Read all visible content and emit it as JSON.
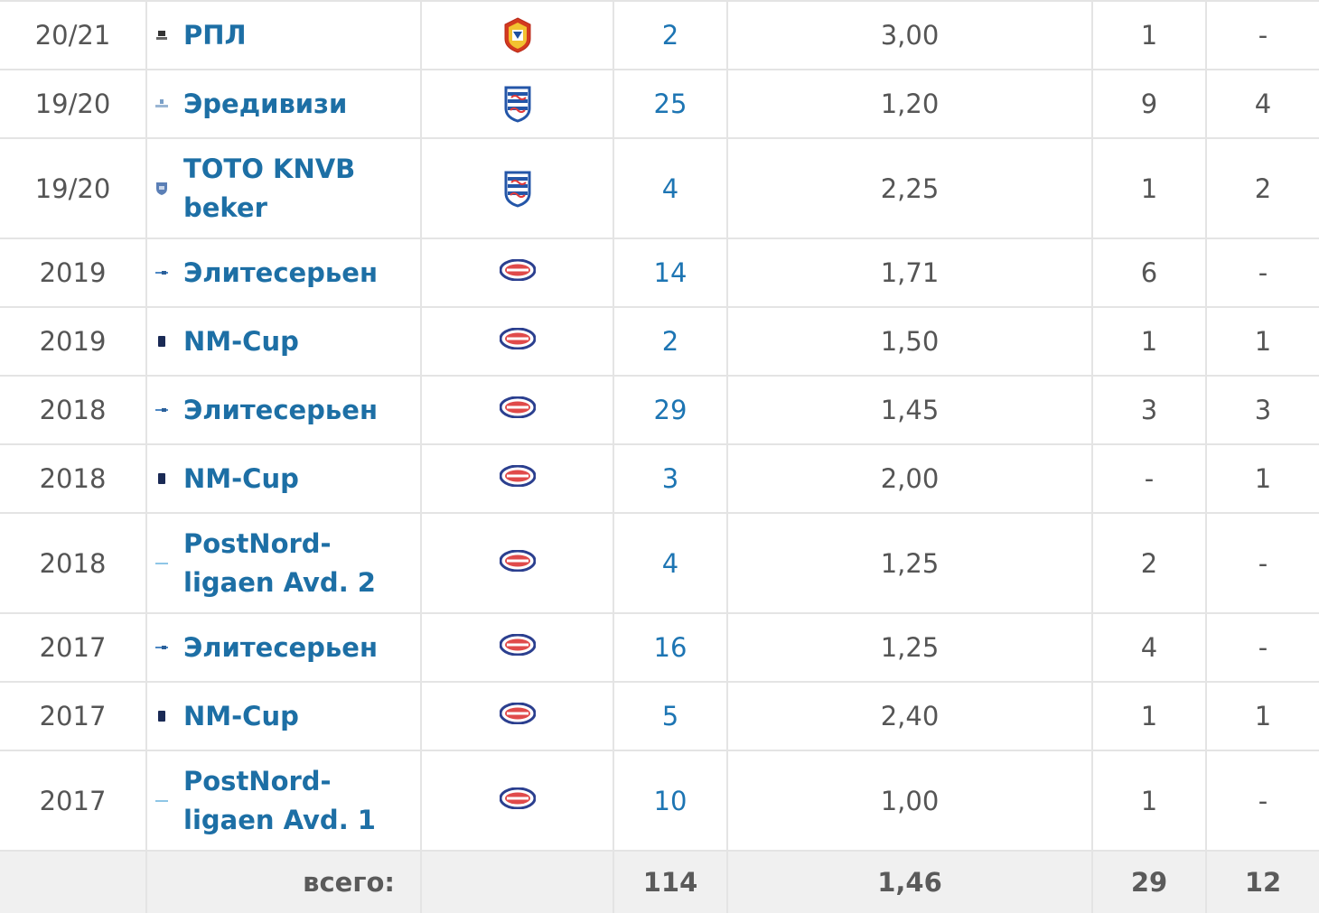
{
  "rows": [
    {
      "season": "20/21",
      "competition": "РПЛ",
      "apps": "2",
      "avg": "3,00",
      "col6": "1",
      "col7": "-"
    },
    {
      "season": "19/20",
      "competition": "Эредивизи",
      "apps": "25",
      "avg": "1,20",
      "col6": "9",
      "col7": "4"
    },
    {
      "season": "19/20",
      "competition": "TOTO KNVB beker",
      "apps": "4",
      "avg": "2,25",
      "col6": "1",
      "col7": "2"
    },
    {
      "season": "2019",
      "competition": "Элитесерьен",
      "apps": "14",
      "avg": "1,71",
      "col6": "6",
      "col7": "-"
    },
    {
      "season": "2019",
      "competition": "NM-Cup",
      "apps": "2",
      "avg": "1,50",
      "col6": "1",
      "col7": "1"
    },
    {
      "season": "2018",
      "competition": "Элитесерьен",
      "apps": "29",
      "avg": "1,45",
      "col6": "3",
      "col7": "3"
    },
    {
      "season": "2018",
      "competition": "NM-Cup",
      "apps": "3",
      "avg": "2,00",
      "col6": "-",
      "col7": "1"
    },
    {
      "season": "2018",
      "competition": "PostNord-ligaen Avd. 2",
      "apps": "4",
      "avg": "1,25",
      "col6": "2",
      "col7": "-"
    },
    {
      "season": "2017",
      "competition": "Элитесерьен",
      "apps": "16",
      "avg": "1,25",
      "col6": "4",
      "col7": "-"
    },
    {
      "season": "2017",
      "competition": "NM-Cup",
      "apps": "5",
      "avg": "2,40",
      "col6": "1",
      "col7": "1"
    },
    {
      "season": "2017",
      "competition": "PostNord-ligaen Avd. 1",
      "apps": "10",
      "avg": "1,00",
      "col6": "1",
      "col7": "-"
    }
  ],
  "total": {
    "label": "всего:",
    "apps": "114",
    "avg": "1,46",
    "col6": "29",
    "col7": "12"
  },
  "colors": {
    "link": "#1d75b3",
    "competition": "#1d6fa5",
    "border": "#e4e4e4",
    "total_bg": "#f0f0f0"
  },
  "icons": {
    "cskaBadge": "cska-badge-icon",
    "heerenveenBadge": "heerenveen-badge-icon",
    "valerengaBadge": "valerenga-badge-icon"
  }
}
